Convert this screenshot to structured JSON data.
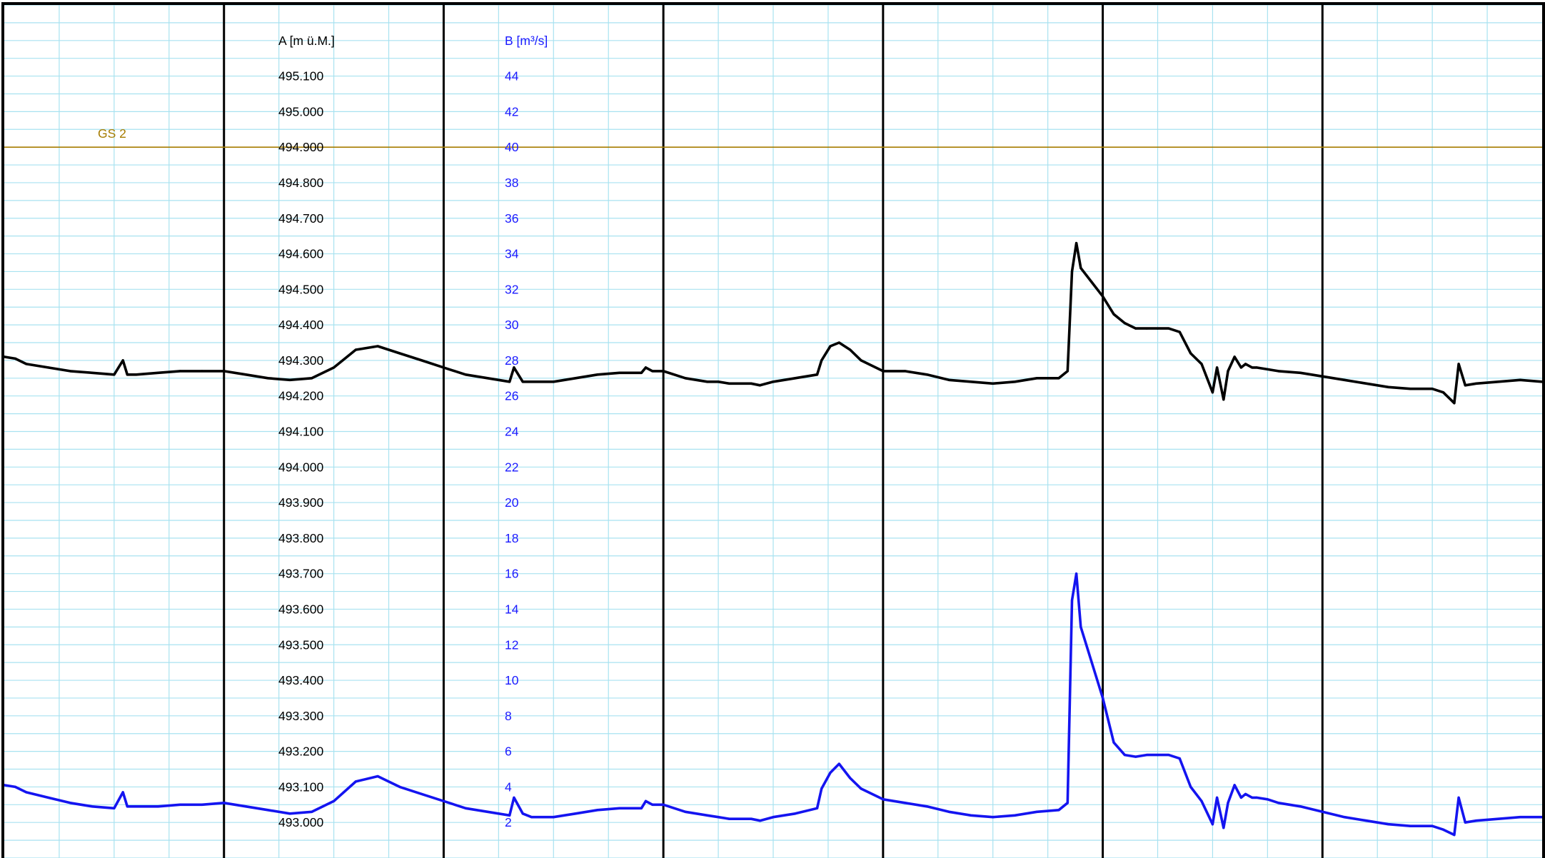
{
  "chart_data": {
    "type": "line",
    "axes": {
      "a": {
        "label": "A [m ü.M.]",
        "ylim": [
          492.9,
          495.3
        ],
        "ticks": [
          "495.100",
          "495.000",
          "494.900",
          "494.800",
          "494.700",
          "494.600",
          "494.500",
          "494.400",
          "494.300",
          "494.200",
          "494.100",
          "494.000",
          "493.900",
          "493.800",
          "493.700",
          "493.600",
          "493.500",
          "493.400",
          "493.300",
          "493.200",
          "493.100",
          "493.000"
        ]
      },
      "b": {
        "label": "B [m³/s]",
        "ylim": [
          0,
          48
        ],
        "ticks": [
          "44",
          "42",
          "40",
          "38",
          "36",
          "34",
          "32",
          "30",
          "28",
          "26",
          "24",
          "22",
          "20",
          "18",
          "16",
          "14",
          "12",
          "10",
          "8",
          "6",
          "4",
          "2"
        ]
      }
    },
    "x": {
      "ticks_printed": false,
      "range": [
        0,
        7
      ],
      "major_divisions": 7,
      "minor_per_major": 4
    },
    "grid": true,
    "reference_line": {
      "label": "GS 2",
      "axis": "a",
      "value": 494.9,
      "color": "#a67c00"
    },
    "series": [
      {
        "axis": "a",
        "color": "#000000",
        "x": [
          0,
          0.05,
          0.1,
          0.2,
          0.3,
          0.4,
          0.5,
          0.54,
          0.56,
          0.6,
          0.7,
          0.8,
          0.9,
          1,
          1.1,
          1.2,
          1.3,
          1.4,
          1.5,
          1.6,
          1.7,
          1.8,
          1.9,
          2,
          2.1,
          2.2,
          2.3,
          2.32,
          2.36,
          2.4,
          2.5,
          2.6,
          2.7,
          2.8,
          2.9,
          2.92,
          2.95,
          3,
          3.1,
          3.2,
          3.25,
          3.3,
          3.4,
          3.44,
          3.5,
          3.6,
          3.7,
          3.72,
          3.76,
          3.8,
          3.85,
          3.9,
          4,
          4.1,
          4.2,
          4.3,
          4.4,
          4.5,
          4.6,
          4.7,
          4.8,
          4.84,
          4.86,
          4.88,
          4.9,
          4.95,
          5,
          5.05,
          5.1,
          5.15,
          5.2,
          5.25,
          5.3,
          5.35,
          5.4,
          5.45,
          5.5,
          5.52,
          5.55,
          5.57,
          5.6,
          5.63,
          5.65,
          5.68,
          5.7,
          5.75,
          5.8,
          5.9,
          6,
          6.1,
          6.2,
          6.3,
          6.4,
          6.5,
          6.55,
          6.6,
          6.62,
          6.65,
          6.7,
          6.8,
          6.9,
          7
        ],
        "values": [
          494.31,
          494.305,
          494.29,
          494.28,
          494.27,
          494.265,
          494.26,
          494.3,
          494.26,
          494.26,
          494.265,
          494.27,
          494.27,
          494.27,
          494.26,
          494.25,
          494.245,
          494.25,
          494.28,
          494.33,
          494.34,
          494.32,
          494.3,
          494.28,
          494.26,
          494.25,
          494.24,
          494.28,
          494.24,
          494.24,
          494.24,
          494.25,
          494.26,
          494.265,
          494.265,
          494.28,
          494.27,
          494.27,
          494.25,
          494.24,
          494.24,
          494.235,
          494.235,
          494.23,
          494.24,
          494.25,
          494.26,
          494.3,
          494.34,
          494.35,
          494.33,
          494.3,
          494.27,
          494.27,
          494.26,
          494.245,
          494.24,
          494.235,
          494.24,
          494.25,
          494.25,
          494.27,
          494.55,
          494.63,
          494.56,
          494.52,
          494.48,
          494.43,
          494.405,
          494.39,
          494.39,
          494.39,
          494.39,
          494.38,
          494.32,
          494.29,
          494.21,
          494.28,
          494.19,
          494.27,
          494.31,
          494.28,
          494.29,
          494.28,
          494.28,
          494.275,
          494.27,
          494.265,
          494.255,
          494.245,
          494.235,
          494.225,
          494.22,
          494.22,
          494.21,
          494.18,
          494.29,
          494.23,
          494.235,
          494.24,
          494.245,
          494.24
        ]
      },
      {
        "axis": "b",
        "color": "#1414f0",
        "x": [
          0,
          0.05,
          0.1,
          0.2,
          0.3,
          0.4,
          0.5,
          0.54,
          0.56,
          0.6,
          0.7,
          0.8,
          0.9,
          1,
          1.1,
          1.2,
          1.3,
          1.4,
          1.5,
          1.6,
          1.7,
          1.8,
          1.9,
          2,
          2.1,
          2.2,
          2.3,
          2.32,
          2.36,
          2.4,
          2.5,
          2.6,
          2.7,
          2.8,
          2.9,
          2.92,
          2.95,
          3,
          3.1,
          3.2,
          3.25,
          3.3,
          3.4,
          3.44,
          3.5,
          3.6,
          3.7,
          3.72,
          3.76,
          3.8,
          3.85,
          3.9,
          4,
          4.1,
          4.2,
          4.3,
          4.4,
          4.5,
          4.6,
          4.7,
          4.8,
          4.84,
          4.86,
          4.88,
          4.9,
          4.95,
          5,
          5.05,
          5.1,
          5.15,
          5.2,
          5.25,
          5.3,
          5.35,
          5.4,
          5.45,
          5.5,
          5.52,
          5.55,
          5.57,
          5.6,
          5.63,
          5.65,
          5.68,
          5.7,
          5.75,
          5.8,
          5.9,
          6,
          6.1,
          6.2,
          6.3,
          6.4,
          6.5,
          6.55,
          6.6,
          6.62,
          6.65,
          6.7,
          6.8,
          6.9,
          7
        ],
        "values": [
          4.1,
          4.0,
          3.7,
          3.4,
          3.1,
          2.9,
          2.8,
          3.7,
          2.9,
          2.9,
          2.9,
          3.0,
          3.0,
          3.1,
          2.9,
          2.7,
          2.5,
          2.6,
          3.2,
          4.3,
          4.6,
          4.0,
          3.6,
          3.2,
          2.8,
          2.6,
          2.4,
          3.4,
          2.5,
          2.3,
          2.3,
          2.5,
          2.7,
          2.8,
          2.8,
          3.2,
          3.0,
          3.0,
          2.6,
          2.4,
          2.3,
          2.2,
          2.2,
          2.1,
          2.3,
          2.5,
          2.8,
          3.9,
          4.8,
          5.3,
          4.5,
          3.9,
          3.3,
          3.1,
          2.9,
          2.6,
          2.4,
          2.3,
          2.4,
          2.6,
          2.7,
          3.1,
          14.5,
          16.0,
          13.0,
          11.0,
          9.0,
          6.5,
          5.8,
          5.7,
          5.8,
          5.8,
          5.8,
          5.6,
          4.0,
          3.2,
          1.9,
          3.4,
          1.7,
          3.1,
          4.1,
          3.4,
          3.6,
          3.4,
          3.4,
          3.3,
          3.1,
          2.9,
          2.6,
          2.3,
          2.1,
          1.9,
          1.8,
          1.8,
          1.6,
          1.3,
          3.4,
          2.0,
          2.1,
          2.2,
          2.3,
          2.3
        ]
      }
    ]
  }
}
